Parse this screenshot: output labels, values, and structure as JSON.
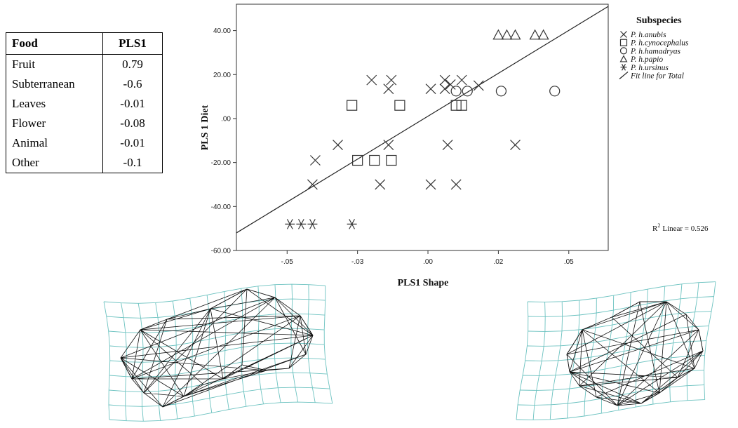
{
  "table": {
    "headers": [
      "Food",
      "PLS1"
    ],
    "rows": [
      {
        "food": "Fruit",
        "pls1": "0.79"
      },
      {
        "food": "Subterranean",
        "pls1": "-0.6"
      },
      {
        "food": "Leaves",
        "pls1": "-0.01"
      },
      {
        "food": "Flower",
        "pls1": "-0.08"
      },
      {
        "food": "Animal",
        "pls1": "-0.01"
      },
      {
        "food": "Other",
        "pls1": "-0.1"
      }
    ]
  },
  "chart_data": {
    "type": "scatter",
    "xlabel": "PLS1 Shape",
    "ylabel": "PLS 1 Diet",
    "xlim": [
      -0.068,
      0.064
    ],
    "ylim": [
      -60,
      52
    ],
    "x_ticks": [
      {
        "value": -0.05,
        "label": "-.05"
      },
      {
        "value": -0.025,
        "label": "-.03"
      },
      {
        "value": 0,
        "label": ".00"
      },
      {
        "value": 0.025,
        "label": ".02"
      },
      {
        "value": 0.05,
        "label": ".05"
      }
    ],
    "y_ticks": [
      {
        "value": 40,
        "label": "40.00"
      },
      {
        "value": 20,
        "label": "20.00"
      },
      {
        "value": 0,
        "label": ".00"
      },
      {
        "value": -20,
        "label": "-20.00"
      },
      {
        "value": -40,
        "label": "-40.00"
      },
      {
        "value": -60,
        "label": "-60.00"
      }
    ],
    "legend_title": "Subspecies",
    "legend_position": "right",
    "series": [
      {
        "name": "P. h.anubis",
        "marker": "x",
        "points": [
          [
            -0.02,
            17.5
          ],
          [
            -0.013,
            17.5
          ],
          [
            -0.014,
            13.5
          ],
          [
            0.006,
            17.5
          ],
          [
            0.012,
            17.5
          ],
          [
            0.001,
            13.5
          ],
          [
            0.006,
            13.5
          ],
          [
            0.008,
            15.5
          ],
          [
            0.018,
            15.0
          ],
          [
            -0.032,
            -12
          ],
          [
            -0.04,
            -19
          ],
          [
            -0.014,
            -12
          ],
          [
            0.007,
            -12
          ],
          [
            0.031,
            -12
          ],
          [
            -0.041,
            -30
          ],
          [
            -0.017,
            -30
          ],
          [
            0.001,
            -30
          ],
          [
            0.01,
            -30
          ]
        ]
      },
      {
        "name": "P. h.cynocephalus",
        "marker": "square",
        "points": [
          [
            -0.027,
            6
          ],
          [
            -0.01,
            6
          ],
          [
            0.01,
            6
          ],
          [
            0.012,
            6
          ],
          [
            -0.025,
            -19
          ],
          [
            -0.019,
            -19
          ],
          [
            -0.013,
            -19
          ]
        ]
      },
      {
        "name": "P. h.hamadryas",
        "marker": "circle",
        "points": [
          [
            0.01,
            12.5
          ],
          [
            0.014,
            12.5
          ],
          [
            0.026,
            12.5
          ],
          [
            0.045,
            12.5
          ]
        ]
      },
      {
        "name": "P. h.papio",
        "marker": "triangle",
        "points": [
          [
            0.025,
            38
          ],
          [
            0.028,
            38
          ],
          [
            0.031,
            38
          ],
          [
            0.038,
            38
          ],
          [
            0.041,
            38
          ]
        ]
      },
      {
        "name": "P. h.ursinus",
        "marker": "star",
        "points": [
          [
            -0.049,
            -48
          ],
          [
            -0.045,
            -48
          ],
          [
            -0.041,
            -48
          ],
          [
            -0.027,
            -48
          ]
        ]
      }
    ],
    "fit_line": {
      "name": "Fit line for Total",
      "points": [
        [
          -0.068,
          -52
        ],
        [
          0.064,
          51
        ]
      ],
      "annotation": "Linear = 0.526",
      "annotation_prefix": "R",
      "annotation_sup": "2"
    }
  }
}
